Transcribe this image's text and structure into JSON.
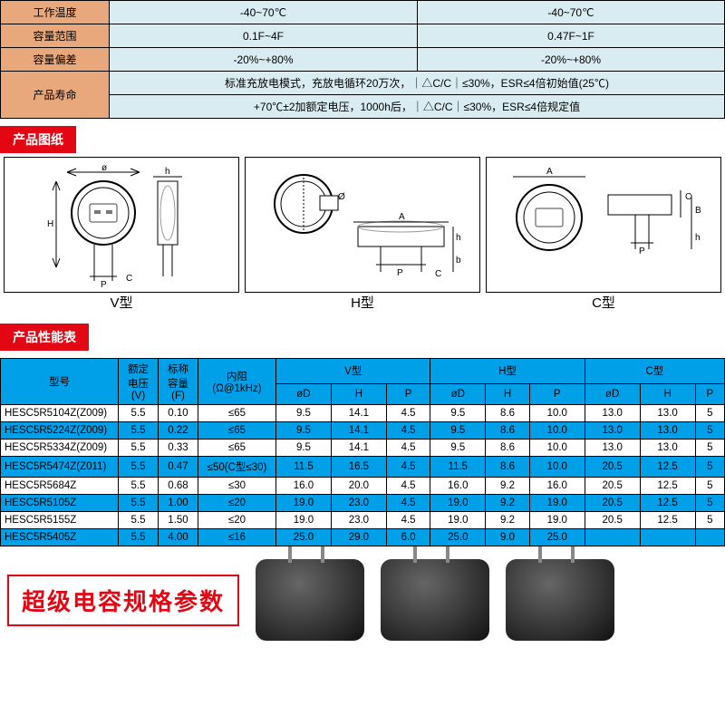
{
  "topSpecs": {
    "rows": [
      {
        "label": "工作温度",
        "col1": "-40~70℃",
        "col2": "-40~70℃"
      },
      {
        "label": "容量范围",
        "col1": "0.1F~4F",
        "col2": "0.47F~1F"
      },
      {
        "label": "容量偏差",
        "col1": "-20%~+80%",
        "col2": "-20%~+80%"
      }
    ],
    "lifeLabel": "产品寿命",
    "lifeRow1": "标准充放电模式，充放电循环20万次，｜△C/C｜≤30%，ESR≤4倍初始值(25℃)",
    "lifeRow2": "+70℃±2加额定电压，1000h后，｜△C/C｜≤30%，ESR≤4倍规定值"
  },
  "sectionDrawings": "产品图纸",
  "sectionPerf": "产品性能表",
  "diagramLabels": {
    "v": "V型",
    "h": "H型",
    "c": "C型"
  },
  "specTable": {
    "headers": {
      "model": "型号",
      "voltage": "额定\n电压\n(V)",
      "cap": "标称\n容量\n(F)",
      "esr": "内阻\n(Ω@1kHz)",
      "vtype": "V型",
      "htype": "H型",
      "ctype": "C型",
      "subD": "øD",
      "subH": "H",
      "subP": "P"
    },
    "rows": [
      {
        "m": "HESC5R5104Z(Z009)",
        "v": "5.5",
        "c": "0.10",
        "e": "≤65",
        "vd": "9.5",
        "vh": "14.1",
        "vp": "4.5",
        "hd": "9.5",
        "hh": "8.6",
        "hp": "10.0",
        "cd": "13.0",
        "ch": "13.0",
        "cp": "5"
      },
      {
        "m": "HESC5R5224Z(Z009)",
        "v": "5.5",
        "c": "0.22",
        "e": "≤65",
        "vd": "9.5",
        "vh": "14.1",
        "vp": "4.5",
        "hd": "9.5",
        "hh": "8.6",
        "hp": "10.0",
        "cd": "13.0",
        "ch": "13.0",
        "cp": "5"
      },
      {
        "m": "HESC5R5334Z(Z009)",
        "v": "5.5",
        "c": "0.33",
        "e": "≤65",
        "vd": "9.5",
        "vh": "14.1",
        "vp": "4.5",
        "hd": "9.5",
        "hh": "8.6",
        "hp": "10.0",
        "cd": "13.0",
        "ch": "13.0",
        "cp": "5"
      },
      {
        "m": "HESC5R5474Z(Z011)",
        "v": "5.5",
        "c": "0.47",
        "e": "≤50(C型≤30)",
        "vd": "11.5",
        "vh": "16.5",
        "vp": "4.5",
        "hd": "11.5",
        "hh": "8.6",
        "hp": "10.0",
        "cd": "20.5",
        "ch": "12.5",
        "cp": "5"
      },
      {
        "m": "HESC5R5684Z",
        "v": "5.5",
        "c": "0.68",
        "e": "≤30",
        "vd": "16.0",
        "vh": "20.0",
        "vp": "4.5",
        "hd": "16.0",
        "hh": "9.2",
        "hp": "16.0",
        "cd": "20.5",
        "ch": "12.5",
        "cp": "5"
      },
      {
        "m": "HESC5R5105Z",
        "v": "5.5",
        "c": "1.00",
        "e": "≤20",
        "vd": "19.0",
        "vh": "23.0",
        "vp": "4.5",
        "hd": "19.0",
        "hh": "9.2",
        "hp": "19.0",
        "cd": "20.5",
        "ch": "12.5",
        "cp": "5"
      },
      {
        "m": "HESC5R5155Z",
        "v": "5.5",
        "c": "1.50",
        "e": "≤20",
        "vd": "19.0",
        "vh": "23.0",
        "vp": "4.5",
        "hd": "19.0",
        "hh": "9.2",
        "hp": "19.0",
        "cd": "20.5",
        "ch": "12.5",
        "cp": "5"
      },
      {
        "m": "HESC5R5405Z",
        "v": "5.5",
        "c": "4.00",
        "e": "≤16",
        "vd": "25.0",
        "vh": "29.0",
        "vp": "6.0",
        "hd": "25.0",
        "hh": "9.0",
        "hp": "25.0",
        "cd": "",
        "ch": "",
        "cp": ""
      }
    ]
  },
  "bottomTitle": "超级电容规格参数",
  "colors": {
    "headerOrange": "#e8a87c",
    "dataBlue": "#d9ecf2",
    "accentRed": "#e30613",
    "tableBlue": "#00a0e9"
  }
}
